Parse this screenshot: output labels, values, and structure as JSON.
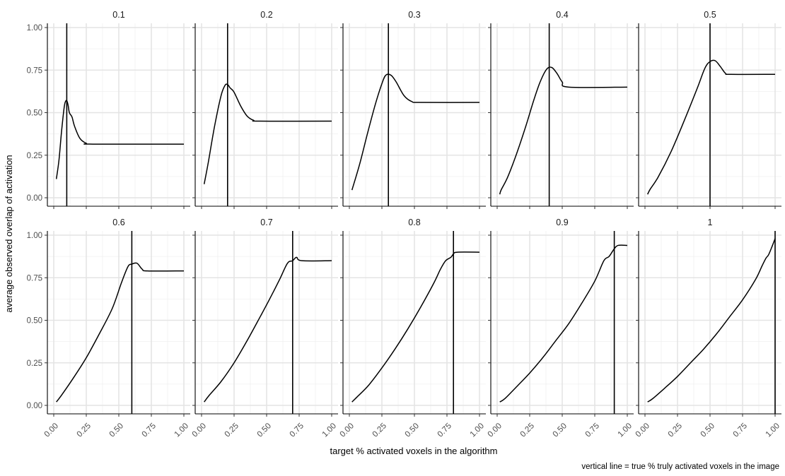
{
  "chart_data": {
    "type": "line",
    "layout": "facet-grid 2x5",
    "xlabel": "target % activated voxels in the algorithm",
    "ylabel": "average observed overlap of activation",
    "caption": "vertical line = true % truly activated voxels in the image",
    "xlim": [
      0,
      1
    ],
    "ylim": [
      0,
      1
    ],
    "x_ticks": [
      "0.00",
      "0.25",
      "0.50",
      "0.75",
      "1.00"
    ],
    "y_ticks": [
      "0.00",
      "0.25",
      "0.50",
      "0.75",
      "1.00"
    ],
    "grid": true,
    "panels": [
      {
        "label": "0.1",
        "vline": 0.1,
        "points": [
          [
            0.02,
            0.11
          ],
          [
            0.04,
            0.22
          ],
          [
            0.06,
            0.39
          ],
          [
            0.08,
            0.53
          ],
          [
            0.09,
            0.565
          ],
          [
            0.1,
            0.57
          ],
          [
            0.11,
            0.545
          ],
          [
            0.12,
            0.5
          ],
          [
            0.14,
            0.475
          ],
          [
            0.16,
            0.42
          ],
          [
            0.2,
            0.35
          ],
          [
            0.25,
            0.32
          ],
          [
            0.3,
            0.315
          ],
          [
            1.0,
            0.315
          ]
        ]
      },
      {
        "label": "0.2",
        "vline": 0.2,
        "points": [
          [
            0.02,
            0.08
          ],
          [
            0.05,
            0.2
          ],
          [
            0.1,
            0.42
          ],
          [
            0.15,
            0.6
          ],
          [
            0.18,
            0.66
          ],
          [
            0.2,
            0.665
          ],
          [
            0.22,
            0.645
          ],
          [
            0.25,
            0.62
          ],
          [
            0.3,
            0.54
          ],
          [
            0.35,
            0.48
          ],
          [
            0.4,
            0.455
          ],
          [
            0.45,
            0.45
          ],
          [
            1.0,
            0.45
          ]
        ]
      },
      {
        "label": "0.3",
        "vline": 0.3,
        "points": [
          [
            0.02,
            0.045
          ],
          [
            0.08,
            0.2
          ],
          [
            0.14,
            0.38
          ],
          [
            0.2,
            0.55
          ],
          [
            0.25,
            0.67
          ],
          [
            0.28,
            0.72
          ],
          [
            0.32,
            0.72
          ],
          [
            0.36,
            0.68
          ],
          [
            0.42,
            0.6
          ],
          [
            0.48,
            0.565
          ],
          [
            0.55,
            0.56
          ],
          [
            1.0,
            0.56
          ]
        ]
      },
      {
        "label": "0.4",
        "vline": 0.4,
        "points": [
          [
            0.02,
            0.02
          ],
          [
            0.03,
            0.045
          ],
          [
            0.08,
            0.12
          ],
          [
            0.15,
            0.26
          ],
          [
            0.22,
            0.42
          ],
          [
            0.28,
            0.57
          ],
          [
            0.33,
            0.68
          ],
          [
            0.38,
            0.755
          ],
          [
            0.42,
            0.765
          ],
          [
            0.46,
            0.73
          ],
          [
            0.5,
            0.68
          ],
          [
            0.55,
            0.65
          ],
          [
            1.0,
            0.65
          ]
        ]
      },
      {
        "label": "0.5",
        "vline": 0.5,
        "points": [
          [
            0.02,
            0.02
          ],
          [
            0.04,
            0.05
          ],
          [
            0.1,
            0.12
          ],
          [
            0.2,
            0.27
          ],
          [
            0.3,
            0.45
          ],
          [
            0.4,
            0.64
          ],
          [
            0.46,
            0.76
          ],
          [
            0.5,
            0.8
          ],
          [
            0.54,
            0.805
          ],
          [
            0.58,
            0.77
          ],
          [
            0.62,
            0.73
          ],
          [
            0.66,
            0.725
          ],
          [
            1.0,
            0.725
          ]
        ]
      },
      {
        "label": "0.6",
        "vline": 0.6,
        "points": [
          [
            0.02,
            0.02
          ],
          [
            0.06,
            0.06
          ],
          [
            0.15,
            0.16
          ],
          [
            0.25,
            0.28
          ],
          [
            0.35,
            0.42
          ],
          [
            0.45,
            0.57
          ],
          [
            0.52,
            0.72
          ],
          [
            0.57,
            0.815
          ],
          [
            0.6,
            0.83
          ],
          [
            0.64,
            0.835
          ],
          [
            0.68,
            0.8
          ],
          [
            0.72,
            0.79
          ],
          [
            1.0,
            0.79
          ]
        ]
      },
      {
        "label": "0.7",
        "vline": 0.7,
        "points": [
          [
            0.02,
            0.02
          ],
          [
            0.06,
            0.06
          ],
          [
            0.15,
            0.14
          ],
          [
            0.25,
            0.25
          ],
          [
            0.35,
            0.38
          ],
          [
            0.45,
            0.52
          ],
          [
            0.52,
            0.62
          ],
          [
            0.6,
            0.74
          ],
          [
            0.66,
            0.835
          ],
          [
            0.7,
            0.85
          ],
          [
            0.73,
            0.87
          ],
          [
            0.77,
            0.85
          ],
          [
            1.0,
            0.85
          ]
        ]
      },
      {
        "label": "0.8",
        "vline": 0.8,
        "points": [
          [
            0.02,
            0.02
          ],
          [
            0.06,
            0.05
          ],
          [
            0.15,
            0.12
          ],
          [
            0.25,
            0.22
          ],
          [
            0.35,
            0.33
          ],
          [
            0.45,
            0.45
          ],
          [
            0.55,
            0.58
          ],
          [
            0.65,
            0.72
          ],
          [
            0.7,
            0.8
          ],
          [
            0.74,
            0.85
          ],
          [
            0.78,
            0.87
          ],
          [
            0.8,
            0.89
          ],
          [
            0.83,
            0.9
          ],
          [
            1.0,
            0.9
          ]
        ]
      },
      {
        "label": "0.9",
        "vline": 0.9,
        "points": [
          [
            0.02,
            0.02
          ],
          [
            0.06,
            0.04
          ],
          [
            0.15,
            0.11
          ],
          [
            0.25,
            0.19
          ],
          [
            0.35,
            0.28
          ],
          [
            0.45,
            0.38
          ],
          [
            0.55,
            0.48
          ],
          [
            0.65,
            0.6
          ],
          [
            0.75,
            0.73
          ],
          [
            0.82,
            0.85
          ],
          [
            0.86,
            0.875
          ],
          [
            0.9,
            0.92
          ],
          [
            0.93,
            0.94
          ],
          [
            1.0,
            0.94
          ]
        ]
      },
      {
        "label": "1",
        "vline": 1.0,
        "points": [
          [
            0.02,
            0.02
          ],
          [
            0.06,
            0.04
          ],
          [
            0.15,
            0.1
          ],
          [
            0.25,
            0.17
          ],
          [
            0.35,
            0.25
          ],
          [
            0.45,
            0.33
          ],
          [
            0.55,
            0.42
          ],
          [
            0.65,
            0.52
          ],
          [
            0.75,
            0.62
          ],
          [
            0.85,
            0.74
          ],
          [
            0.9,
            0.82
          ],
          [
            0.93,
            0.865
          ],
          [
            0.95,
            0.885
          ],
          [
            0.98,
            0.94
          ],
          [
            1.0,
            0.98
          ]
        ]
      }
    ]
  }
}
